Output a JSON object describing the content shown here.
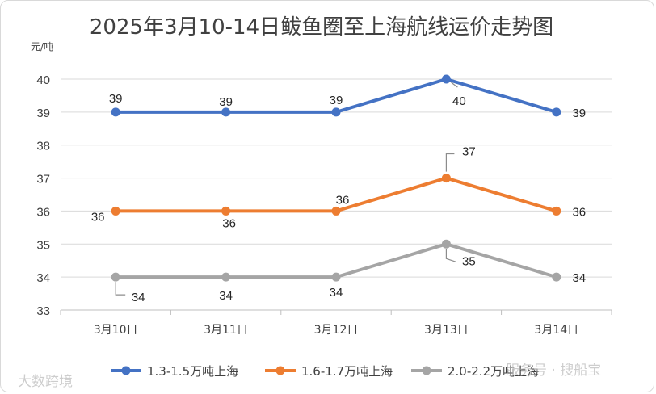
{
  "chart_data": {
    "type": "line",
    "title": "2025年3月10-14日鲅鱼圈至上海航线运价走势图",
    "y_unit": "元/吨",
    "xlabel": "",
    "ylabel": "",
    "ylim": [
      33,
      40
    ],
    "y_ticks": [
      33,
      34,
      35,
      36,
      37,
      38,
      39,
      40
    ],
    "categories": [
      "3月10日",
      "3月11日",
      "3月12日",
      "3月13日",
      "3月14日"
    ],
    "grid": true,
    "legend_position": "bottom",
    "series": [
      {
        "name": "1.3-1.5万吨上海",
        "color": "#4472c4",
        "values": [
          39,
          39,
          39,
          40,
          39
        ]
      },
      {
        "name": "1.6-1.7万吨上海",
        "color": "#ed7d31",
        "values": [
          36,
          36,
          36,
          37,
          36
        ]
      },
      {
        "name": "2.0-2.2万吨上海",
        "color": "#a5a5a5",
        "values": [
          34,
          34,
          34,
          35,
          34
        ]
      }
    ]
  },
  "watermarks": {
    "left": "大数跨境",
    "right": "服务号 · 搜船宝"
  }
}
